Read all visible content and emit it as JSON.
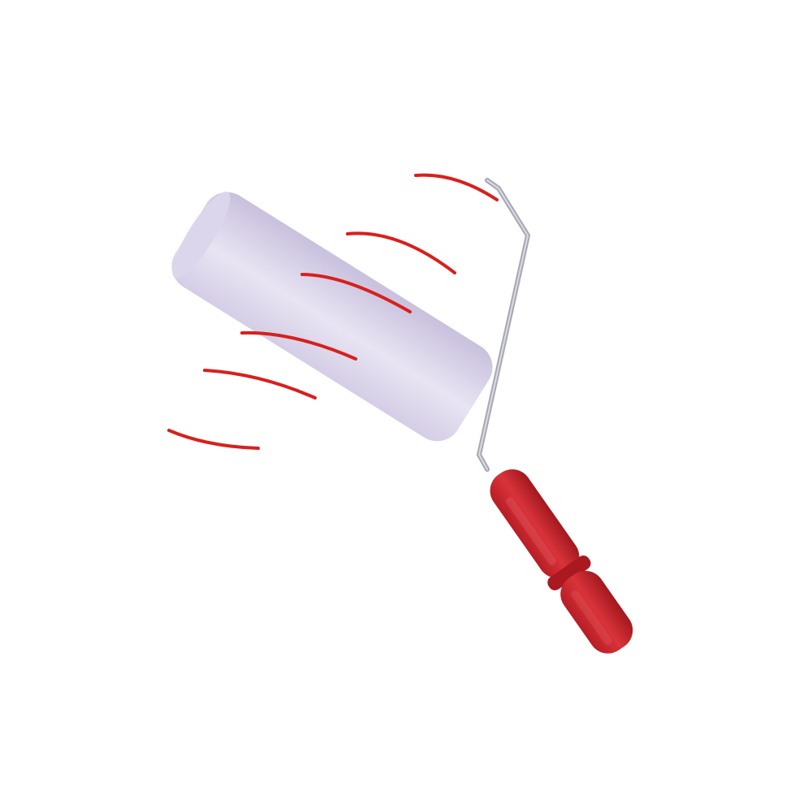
{
  "image": {
    "subject": "paint-roller",
    "background_color": "#ffffff"
  },
  "colors": {
    "roller_cover": "#e8e3f3",
    "roller_cover_shade": "#cfc8e2",
    "roller_stripe": "#d8201c",
    "frame_wire": "#a9a9b4",
    "handle": "#c8232a",
    "handle_shade": "#9f1a20"
  }
}
